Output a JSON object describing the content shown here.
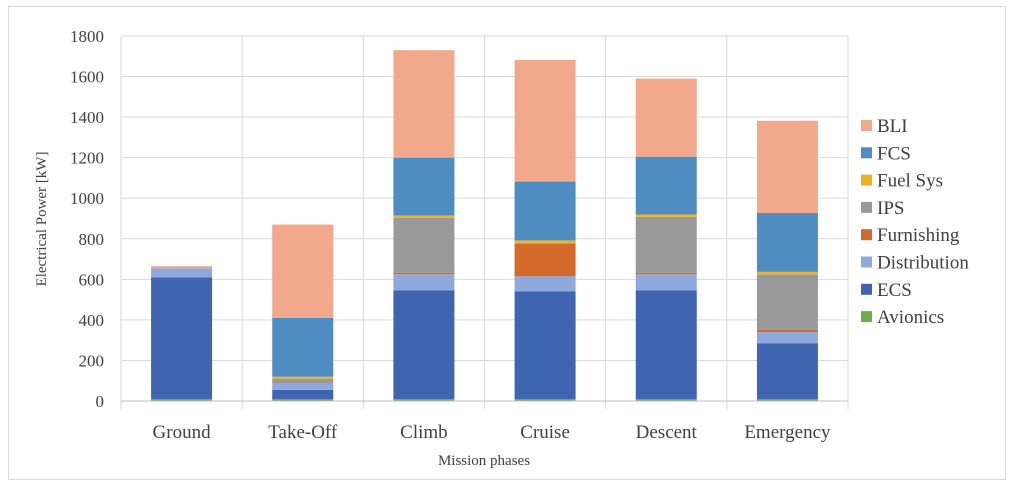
{
  "chart_data": {
    "type": "bar",
    "stacked": true,
    "title": "",
    "xlabel": "Mission phases",
    "ylabel": "Electrical Power [kW]",
    "ylim": [
      0,
      1800
    ],
    "yticks": [
      0,
      200,
      400,
      600,
      800,
      1000,
      1200,
      1400,
      1600,
      1800
    ],
    "grid": true,
    "legend_position": "right",
    "categories": [
      "Ground",
      "Take-Off",
      "Climb",
      "Cruise",
      "Descent",
      "Emergency"
    ],
    "series": [
      {
        "name": "Avionics",
        "color": "#70ad47",
        "values": [
          10,
          10,
          10,
          10,
          10,
          10
        ]
      },
      {
        "name": "ECS",
        "color": "#3f64b0",
        "values": [
          600,
          45,
          535,
          530,
          535,
          275
        ]
      },
      {
        "name": "Distribution",
        "color": "#8fa9dc",
        "values": [
          45,
          30,
          80,
          75,
          80,
          55
        ]
      },
      {
        "name": "Furnishing",
        "color": "#d46a2a",
        "values": [
          0,
          0,
          8,
          160,
          8,
          10
        ]
      },
      {
        "name": "IPS",
        "color": "#999999",
        "values": [
          0,
          25,
          270,
          5,
          275,
          275
        ]
      },
      {
        "name": "Fuel Sys",
        "color": "#ecb221",
        "values": [
          0,
          10,
          12,
          12,
          12,
          12
        ]
      },
      {
        "name": "FCS",
        "color": "#4e8cc2",
        "values": [
          0,
          290,
          285,
          290,
          285,
          290
        ]
      },
      {
        "name": "BLI",
        "color": "#f2a98b",
        "values": [
          10,
          460,
          530,
          600,
          385,
          455
        ]
      }
    ]
  }
}
